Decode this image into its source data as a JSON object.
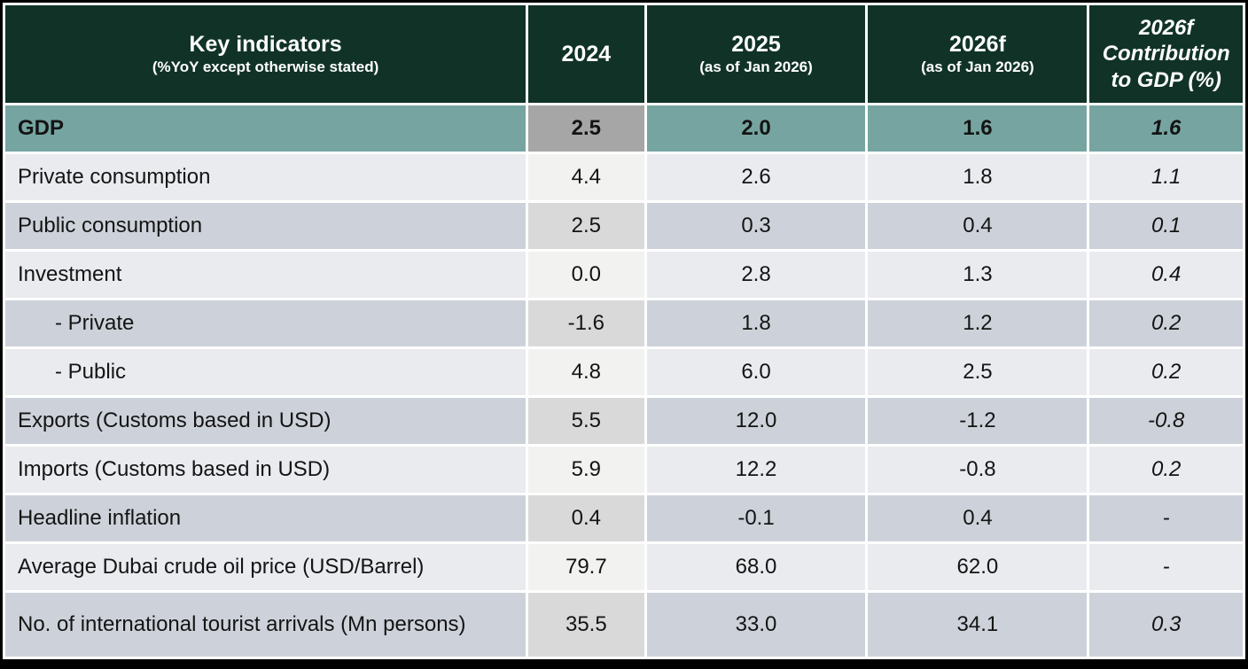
{
  "colors": {
    "header_bg": "#113327",
    "gdp_bg": "#76A5A1",
    "gdp_2024_bg": "#A6A6A6",
    "stripe_light": "#E9EBEF",
    "stripe_dark": "#CDD2DA",
    "col2024_light": "#F2F2F1",
    "col2024_dark": "#D9D9D9",
    "border": "#000000",
    "header_text": "#FFFFFF",
    "body_text": "#141414"
  },
  "table": {
    "header": {
      "indicator": {
        "title": "Key indicators",
        "subtitle": "(%YoY except otherwise stated)"
      },
      "columns": [
        {
          "title": "2024",
          "subtitle": ""
        },
        {
          "title": "2025",
          "subtitle": "(as of Jan 2026)"
        },
        {
          "title": "2026f",
          "subtitle": "(as of Jan 2026)"
        },
        {
          "title": "2026f Contribution to GDP (%)",
          "subtitle": ""
        }
      ]
    },
    "rows": [
      {
        "label": "GDP",
        "values": [
          "2.5",
          "2.0",
          "1.6",
          "1.6"
        ],
        "emphasis": true
      },
      {
        "label": "Private consumption",
        "values": [
          "4.4",
          "2.6",
          "1.8",
          "1.1"
        ]
      },
      {
        "label": "Public consumption",
        "values": [
          "2.5",
          "0.3",
          "0.4",
          "0.1"
        ]
      },
      {
        "label": "Investment",
        "values": [
          "0.0",
          "2.8",
          "1.3",
          "0.4"
        ]
      },
      {
        "label": "- Private",
        "values": [
          "-1.6",
          "1.8",
          "1.2",
          "0.2"
        ],
        "indent": true
      },
      {
        "label": "- Public",
        "values": [
          "4.8",
          "6.0",
          "2.5",
          "0.2"
        ],
        "indent": true
      },
      {
        "label": "Exports (Customs based in USD)",
        "values": [
          "5.5",
          "12.0",
          "-1.2",
          "-0.8"
        ]
      },
      {
        "label": "Imports (Customs based in USD)",
        "values": [
          "5.9",
          "12.2",
          "-0.8",
          "0.2"
        ]
      },
      {
        "label": "Headline inflation",
        "values": [
          "0.4",
          "-0.1",
          "0.4",
          "-"
        ]
      },
      {
        "label": "Average Dubai crude oil price (USD/Barrel)",
        "values": [
          "79.7",
          "68.0",
          "62.0",
          "-"
        ]
      },
      {
        "label": "No. of international tourist arrivals (Mn persons)",
        "values": [
          "35.5",
          "33.0",
          "34.1",
          "0.3"
        ]
      }
    ]
  },
  "chart_data": {
    "type": "table",
    "title": "Key indicators (%YoY except otherwise stated)",
    "columns": [
      "Key indicators (%YoY except otherwise stated)",
      "2024",
      "2025 (as of Jan 2026)",
      "2026f (as of Jan 2026)",
      "2026f Contribution to GDP (%)"
    ],
    "rows": [
      [
        "GDP",
        2.5,
        2.0,
        1.6,
        1.6
      ],
      [
        "Private consumption",
        4.4,
        2.6,
        1.8,
        1.1
      ],
      [
        "Public consumption",
        2.5,
        0.3,
        0.4,
        0.1
      ],
      [
        "Investment",
        0.0,
        2.8,
        1.3,
        0.4
      ],
      [
        "- Private",
        -1.6,
        1.8,
        1.2,
        0.2
      ],
      [
        "- Public",
        4.8,
        6.0,
        2.5,
        0.2
      ],
      [
        "Exports (Customs based in USD)",
        5.5,
        12.0,
        -1.2,
        -0.8
      ],
      [
        "Imports (Customs based in USD)",
        5.9,
        12.2,
        -0.8,
        0.2
      ],
      [
        "Headline inflation",
        0.4,
        -0.1,
        0.4,
        "-"
      ],
      [
        "Average Dubai crude oil price (USD/Barrel)",
        79.7,
        68.0,
        62.0,
        "-"
      ],
      [
        "No. of international tourist arrivals (Mn persons)",
        35.5,
        33.0,
        34.1,
        0.3
      ]
    ],
    "notes": "GDP row highlighted sage green; 2024 column shaded neutral gray; last column values italic"
  }
}
